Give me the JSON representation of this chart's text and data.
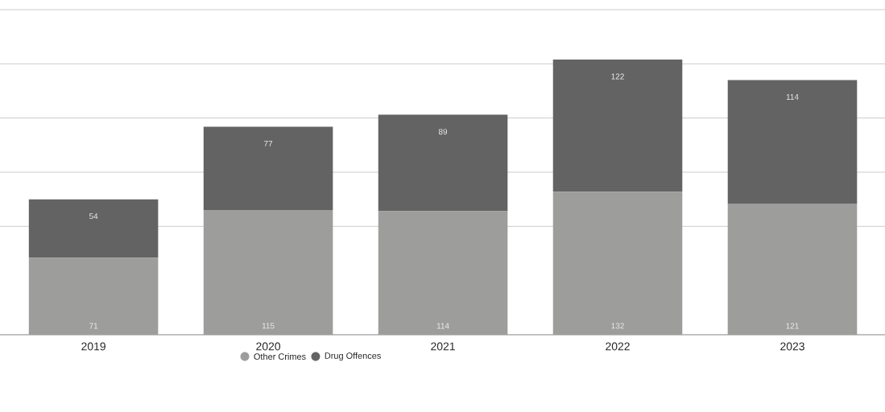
{
  "chart_data": {
    "type": "bar",
    "stacked": true,
    "categories": [
      "2019",
      "2020",
      "2021",
      "2022",
      "2023"
    ],
    "series": [
      {
        "name": "Other Crimes",
        "color": "#9d9d9b",
        "values": [
          71,
          115,
          114,
          132,
          121
        ]
      },
      {
        "name": "Drug Offences",
        "color": "#636363",
        "values": [
          54,
          77,
          89,
          122,
          114
        ]
      }
    ],
    "ylim": [
      0,
      300
    ],
    "yticks": [
      {
        "value": 0,
        "label": null
      },
      {
        "value": 100,
        "label": null
      },
      {
        "value": 150,
        "label": null
      },
      {
        "value": 200,
        "label": null
      },
      {
        "value": 250,
        "label": null
      },
      {
        "value": 300,
        "label": null
      }
    ],
    "tick_labels": "x",
    "grid": "y",
    "legend": "bottom",
    "data_labels": true
  }
}
